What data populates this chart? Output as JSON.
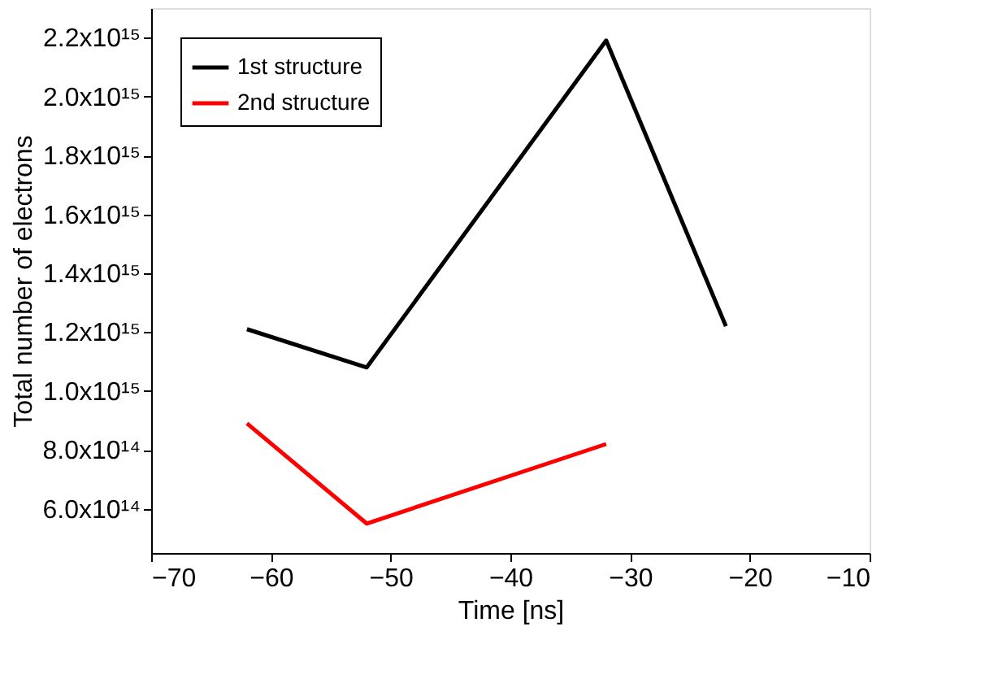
{
  "chart_data": {
    "type": "line",
    "xlabel": "Time [ns]",
    "ylabel": "Total number of electrons",
    "x": [
      -62,
      -52,
      -32,
      -22
    ],
    "series": [
      {
        "name": "1st structure",
        "color": "#000000",
        "values": [
          1210000000000000.0,
          1080000000000000.0,
          2190000000000000.0,
          1220000000000000.0
        ]
      },
      {
        "name": "2nd structure",
        "color": "#ff0000",
        "values": [
          890000000000000.0,
          550000000000000.0,
          820000000000000.0,
          null
        ]
      }
    ],
    "xlim": [
      -70,
      -10
    ],
    "xticks": [
      -70,
      -60,
      -50,
      -40,
      -30,
      -20,
      -10
    ],
    "ylim": [
      450000000000000.0,
      2300000000000000.0
    ],
    "yticks": [
      {
        "value": 600000000000000.0,
        "label": "6.0x10¹⁴"
      },
      {
        "value": 800000000000000.0,
        "label": "8.0x10¹⁴"
      },
      {
        "value": 1000000000000000.0,
        "label": "1.0x10¹⁵"
      },
      {
        "value": 1200000000000000.0,
        "label": "1.2x10¹⁵"
      },
      {
        "value": 1400000000000000.0,
        "label": "1.4x10¹⁵"
      },
      {
        "value": 1600000000000000.0,
        "label": "1.6x10¹⁵"
      },
      {
        "value": 1800000000000000.0,
        "label": "1.8x10¹⁵"
      },
      {
        "value": 2000000000000000.0,
        "label": "2.0x10¹⁵"
      },
      {
        "value": 2200000000000000.0,
        "label": "2.2x10¹⁵"
      }
    ],
    "grid": false,
    "legend": "top left",
    "marker": "none",
    "line_style": "solid"
  }
}
